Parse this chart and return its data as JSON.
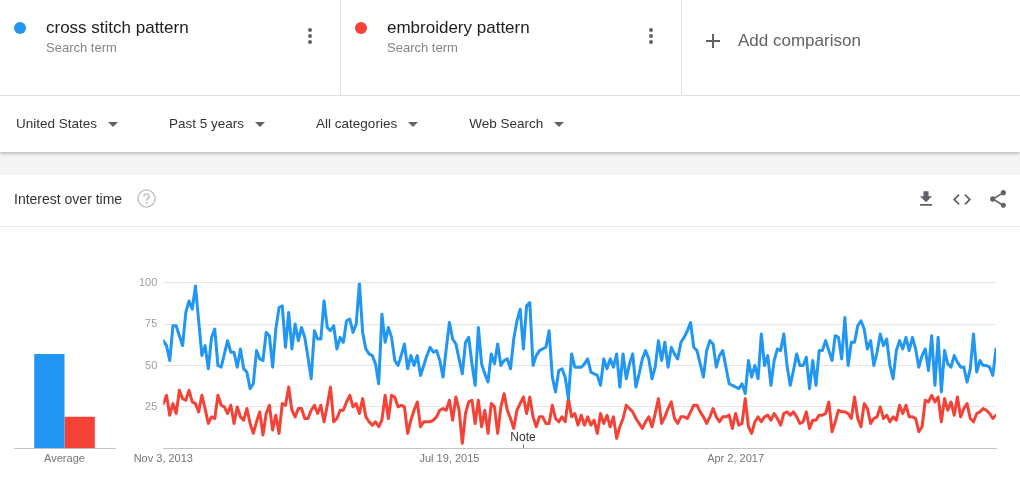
{
  "chart_data": [
    {
      "type": "bar",
      "title": "Interest over time",
      "categories": [
        "Average"
      ],
      "series": [
        {
          "color": "#2196f3",
          "values": [
            57
          ]
        },
        {
          "color": "#f44336",
          "values": [
            19
          ]
        }
      ],
      "ylim": [
        0,
        100
      ],
      "tick_labels": "x"
    },
    {
      "type": "line",
      "legend": "top",
      "grid": "y",
      "xlim": [
        "2013-11-03",
        "2018-10-21"
      ],
      "xticks": [
        {
          "value": "2013-11-03",
          "label": "Nov 3, 2013"
        },
        {
          "value": "2015-07-19",
          "label": "Jul 19, 2015"
        },
        {
          "value": "2017-04-02",
          "label": "Apr 2, 2017"
        }
      ],
      "ylim": [
        0,
        100
      ],
      "yticks": [
        25,
        50,
        75,
        100
      ],
      "annotations": [
        "Search term",
        "Search term",
        "Add comparison",
        "United States",
        "Past 5 years",
        "All categories",
        "Web Search",
        "Note"
      ],
      "x": [
        "2013-11-03",
        "2013-11-10",
        "2013-11-17",
        "2013-11-24",
        "2013-12-01",
        "2013-12-08",
        "2013-12-15",
        "2013-12-22",
        "2013-12-29",
        "2014-01-05",
        "2014-01-12",
        "2014-01-19",
        "2014-01-26",
        "2014-02-02",
        "2014-02-09",
        "2014-02-16",
        "2014-02-23",
        "2014-03-02",
        "2014-03-09",
        "2014-03-16",
        "2014-03-23",
        "2014-03-30",
        "2014-04-06",
        "2014-04-13",
        "2014-04-20",
        "2014-04-27",
        "2014-05-04",
        "2014-05-11",
        "2014-05-18",
        "2014-05-25",
        "2014-06-01",
        "2014-06-08",
        "2014-06-15",
        "2014-06-22",
        "2014-06-29",
        "2014-07-06",
        "2014-07-13",
        "2014-07-20",
        "2014-07-27",
        "2014-08-03",
        "2014-08-10",
        "2014-08-17",
        "2014-08-24",
        "2014-08-31",
        "2014-09-07",
        "2014-09-14",
        "2014-09-21",
        "2014-09-28",
        "2014-10-05",
        "2014-10-12",
        "2014-10-19",
        "2014-10-26",
        "2014-11-02",
        "2014-11-09",
        "2014-11-16",
        "2014-11-23",
        "2014-11-30",
        "2014-12-07",
        "2014-12-14",
        "2014-12-21",
        "2014-12-28",
        "2015-01-04",
        "2015-01-11",
        "2015-01-18",
        "2015-01-25",
        "2015-02-01",
        "2015-02-08",
        "2015-02-15",
        "2015-02-22",
        "2015-03-01",
        "2015-03-08",
        "2015-03-15",
        "2015-03-22",
        "2015-03-29",
        "2015-04-05",
        "2015-04-12",
        "2015-04-19",
        "2015-04-26",
        "2015-05-03",
        "2015-05-10",
        "2015-05-17",
        "2015-05-24",
        "2015-05-31",
        "2015-06-07",
        "2015-06-14",
        "2015-06-21",
        "2015-06-28",
        "2015-07-05",
        "2015-07-12",
        "2015-07-19",
        "2015-07-26",
        "2015-08-02",
        "2015-08-09",
        "2015-08-16",
        "2015-08-23",
        "2015-08-30",
        "2015-09-06",
        "2015-09-13",
        "2015-09-20",
        "2015-09-27",
        "2015-10-04",
        "2015-10-11",
        "2015-10-18",
        "2015-10-25",
        "2015-11-01",
        "2015-11-08",
        "2015-11-15",
        "2015-11-22",
        "2015-11-29",
        "2015-12-06",
        "2015-12-13",
        "2015-12-20",
        "2015-12-27",
        "2016-01-03",
        "2016-01-10",
        "2016-01-17",
        "2016-01-24",
        "2016-01-31",
        "2016-02-07",
        "2016-02-14",
        "2016-02-21",
        "2016-02-28",
        "2016-03-06",
        "2016-03-13",
        "2016-03-20",
        "2016-03-27",
        "2016-04-03",
        "2016-04-10",
        "2016-04-17",
        "2016-04-24",
        "2016-05-01",
        "2016-05-08",
        "2016-05-15",
        "2016-05-22",
        "2016-05-29",
        "2016-06-05",
        "2016-06-12",
        "2016-06-19",
        "2016-06-26",
        "2016-07-03",
        "2016-07-10",
        "2016-07-17",
        "2016-07-24",
        "2016-07-31",
        "2016-08-07",
        "2016-08-14",
        "2016-08-21",
        "2016-08-28",
        "2016-09-04",
        "2016-09-11",
        "2016-09-18",
        "2016-09-25",
        "2016-10-02",
        "2016-10-09",
        "2016-10-16",
        "2016-10-23",
        "2016-10-30",
        "2016-11-06",
        "2016-11-13",
        "2016-11-20",
        "2016-11-27",
        "2016-12-04",
        "2016-12-11",
        "2016-12-18",
        "2016-12-25",
        "2017-01-01",
        "2017-01-08",
        "2017-01-15",
        "2017-01-22",
        "2017-01-29",
        "2017-02-05",
        "2017-02-12",
        "2017-02-19",
        "2017-02-26",
        "2017-03-05",
        "2017-03-12",
        "2017-03-19",
        "2017-03-26",
        "2017-04-02",
        "2017-04-09",
        "2017-04-16",
        "2017-04-23",
        "2017-04-30",
        "2017-05-07",
        "2017-05-14",
        "2017-05-21",
        "2017-05-28",
        "2017-06-04",
        "2017-06-11",
        "2017-06-18",
        "2017-06-25",
        "2017-07-02",
        "2017-07-09",
        "2017-07-16",
        "2017-07-23",
        "2017-07-30",
        "2017-08-06",
        "2017-08-13",
        "2017-08-20",
        "2017-08-27",
        "2017-09-03",
        "2017-09-10",
        "2017-09-17",
        "2017-09-24",
        "2017-10-01",
        "2017-10-08",
        "2017-10-15",
        "2017-10-22",
        "2017-10-29",
        "2017-11-05",
        "2017-11-12",
        "2017-11-19",
        "2017-11-26",
        "2017-12-03",
        "2017-12-10",
        "2017-12-17",
        "2017-12-24",
        "2017-12-31",
        "2018-01-07",
        "2018-01-14",
        "2018-01-21",
        "2018-01-28",
        "2018-02-04",
        "2018-02-11",
        "2018-02-18",
        "2018-02-25",
        "2018-03-04",
        "2018-03-11",
        "2018-03-18",
        "2018-03-25",
        "2018-04-01",
        "2018-04-08",
        "2018-04-15",
        "2018-04-22",
        "2018-04-29",
        "2018-05-06",
        "2018-05-13",
        "2018-05-20",
        "2018-05-27",
        "2018-06-03",
        "2018-06-10",
        "2018-06-17",
        "2018-06-24",
        "2018-07-01",
        "2018-07-08",
        "2018-07-15",
        "2018-07-22",
        "2018-07-29",
        "2018-08-05",
        "2018-08-12",
        "2018-08-19",
        "2018-08-26",
        "2018-09-02",
        "2018-09-09",
        "2018-09-16",
        "2018-09-23",
        "2018-09-30",
        "2018-10-07",
        "2018-10-14",
        "2018-10-21"
      ],
      "series": [
        {
          "name": "cross stitch pattern",
          "color": "#2196f3",
          "values": [
            65,
            62,
            53,
            74,
            74,
            68,
            62,
            82,
            89,
            84,
            98,
            77,
            56,
            62,
            48,
            67,
            72,
            50,
            49,
            57,
            65,
            58,
            58,
            49,
            60,
            48,
            46,
            36,
            39,
            59,
            54,
            53,
            70,
            68,
            49,
            72,
            85,
            86,
            61,
            82,
            60,
            75,
            65,
            73,
            67,
            55,
            42,
            71,
            66,
            66,
            89,
            73,
            71,
            74,
            60,
            67,
            64,
            77,
            78,
            70,
            75,
            100,
            70,
            60,
            57,
            56,
            51,
            39,
            81,
            64,
            73,
            67,
            53,
            50,
            56,
            63,
            48,
            56,
            50,
            56,
            44,
            50,
            56,
            61,
            58,
            59,
            53,
            43,
            60,
            76,
            66,
            63,
            54,
            45,
            64,
            67,
            51,
            38,
            73,
            51,
            45,
            40,
            57,
            51,
            63,
            50,
            53,
            54,
            48,
            66,
            77,
            84,
            60,
            86,
            88,
            50,
            56,
            59,
            60,
            61,
            71,
            43,
            34,
            47,
            48,
            43,
            30,
            57,
            49,
            49,
            49,
            51,
            54,
            46,
            45,
            44,
            38,
            54,
            48,
            54,
            49,
            57,
            37,
            57,
            42,
            51,
            57,
            37,
            45,
            54,
            59,
            54,
            42,
            49,
            65,
            53,
            64,
            49,
            61,
            57,
            54,
            64,
            67,
            71,
            76,
            61,
            59,
            51,
            43,
            59,
            65,
            63,
            49,
            56,
            59,
            49,
            39,
            38,
            37,
            36,
            39,
            33,
            53,
            43,
            50,
            42,
            69,
            50,
            56,
            38,
            53,
            60,
            59,
            69,
            50,
            38,
            47,
            57,
            50,
            50,
            55,
            36,
            53,
            38,
            59,
            59,
            65,
            59,
            53,
            68,
            67,
            54,
            79,
            50,
            64,
            64,
            74,
            77,
            72,
            60,
            65,
            50,
            58,
            69,
            62,
            66,
            50,
            42,
            59,
            65,
            60,
            67,
            59,
            67,
            60,
            49,
            56,
            60,
            47,
            68,
            38,
            67,
            34,
            59,
            51,
            49,
            56,
            52,
            49,
            49,
            40,
            48,
            69,
            46,
            53,
            50,
            50,
            49,
            44,
            60
          ]
        },
        {
          "name": "embroidery pattern",
          "color": "#f44336",
          "values": [
            27,
            32,
            20,
            27,
            21,
            35,
            30,
            29,
            35,
            28,
            27,
            22,
            32,
            24,
            15,
            19,
            18,
            32,
            26,
            25,
            21,
            26,
            15,
            25,
            19,
            17,
            24,
            15,
            9,
            16,
            22,
            8,
            21,
            26,
            11,
            20,
            9,
            27,
            26,
            37,
            23,
            19,
            24,
            24,
            18,
            18,
            23,
            26,
            21,
            26,
            16,
            26,
            37,
            16,
            18,
            23,
            23,
            28,
            32,
            25,
            27,
            21,
            30,
            19,
            16,
            14,
            16,
            13,
            17,
            32,
            18,
            32,
            31,
            25,
            26,
            25,
            9,
            17,
            23,
            28,
            13,
            16,
            16,
            16,
            17,
            19,
            23,
            24,
            23,
            29,
            17,
            31,
            23,
            3,
            21,
            28,
            29,
            15,
            29,
            13,
            23,
            9,
            27,
            25,
            9,
            25,
            33,
            23,
            18,
            12,
            23,
            27,
            31,
            21,
            31,
            19,
            13,
            19,
            19,
            15,
            15,
            26,
            18,
            16,
            19,
            16,
            30,
            19,
            21,
            14,
            20,
            14,
            19,
            14,
            17,
            9,
            21,
            15,
            20,
            13,
            19,
            6,
            13,
            18,
            26,
            24,
            22,
            18,
            15,
            12,
            16,
            19,
            13,
            21,
            30,
            15,
            19,
            24,
            28,
            18,
            15,
            19,
            19,
            18,
            22,
            26,
            26,
            22,
            19,
            15,
            19,
            24,
            19,
            16,
            19,
            19,
            20,
            12,
            21,
            14,
            15,
            30,
            13,
            9,
            16,
            19,
            16,
            19,
            20,
            17,
            21,
            18,
            14,
            21,
            22,
            20,
            22,
            19,
            15,
            16,
            22,
            12,
            17,
            17,
            20,
            20,
            21,
            28,
            10,
            16,
            23,
            22,
            22,
            21,
            18,
            31,
            18,
            13,
            27,
            24,
            15,
            18,
            19,
            25,
            18,
            20,
            16,
            19,
            17,
            26,
            21,
            26,
            19,
            19,
            18,
            10,
            13,
            29,
            28,
            32,
            28,
            31,
            16,
            30,
            23,
            28,
            20,
            31,
            19,
            24,
            27,
            18,
            16,
            21,
            22,
            24,
            23,
            21,
            18,
            20
          ]
        }
      ]
    }
  ]
}
